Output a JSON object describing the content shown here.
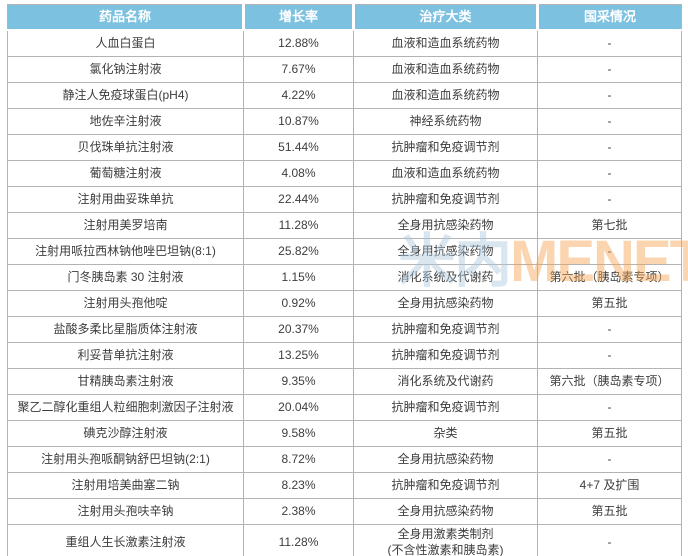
{
  "watermark": {
    "text_cn": "米内",
    "text_en": "MENET"
  },
  "colors": {
    "header_bg": "#7DC1E0",
    "header_text": "#FFFFFF",
    "grid_border": "#B3B3B3",
    "cell_text": "#3D3D3D",
    "watermark_cn": "#AEC9DD",
    "watermark_en": "#F5A34F"
  },
  "chart_data": {
    "type": "table",
    "title": "",
    "columns": [
      "药品名称",
      "增长率",
      "治疗大类",
      "国采情况"
    ],
    "rows": [
      {
        "name": "人血白蛋白",
        "growth": "12.88%",
        "category": "血液和造血系统药物",
        "procurement": "-"
      },
      {
        "name": "氯化钠注射液",
        "growth": "7.67%",
        "category": "血液和造血系统药物",
        "procurement": "-"
      },
      {
        "name": "静注人免疫球蛋白(pH4)",
        "growth": "4.22%",
        "category": "血液和造血系统药物",
        "procurement": "-"
      },
      {
        "name": "地佐辛注射液",
        "growth": "10.87%",
        "category": "神经系统药物",
        "procurement": "-"
      },
      {
        "name": "贝伐珠单抗注射液",
        "growth": "51.44%",
        "category": "抗肿瘤和免疫调节剂",
        "procurement": "-"
      },
      {
        "name": "葡萄糖注射液",
        "growth": "4.08%",
        "category": "血液和造血系统药物",
        "procurement": "-"
      },
      {
        "name": "注射用曲妥珠单抗",
        "growth": "22.44%",
        "category": "抗肿瘤和免疫调节剂",
        "procurement": "-"
      },
      {
        "name": "注射用美罗培南",
        "growth": "11.28%",
        "category": "全身用抗感染药物",
        "procurement": "第七批"
      },
      {
        "name": "注射用哌拉西林钠他唑巴坦钠(8:1)",
        "growth": "25.82%",
        "category": "全身用抗感染药物",
        "procurement": "-"
      },
      {
        "name": "门冬胰岛素 30 注射液",
        "growth": "1.15%",
        "category": "消化系统及代谢药",
        "procurement": "第六批（胰岛素专项）"
      },
      {
        "name": "注射用头孢他啶",
        "growth": "0.92%",
        "category": "全身用抗感染药物",
        "procurement": "第五批"
      },
      {
        "name": "盐酸多柔比星脂质体注射液",
        "growth": "20.37%",
        "category": "抗肿瘤和免疫调节剂",
        "procurement": "-"
      },
      {
        "name": "利妥昔单抗注射液",
        "growth": "13.25%",
        "category": "抗肿瘤和免疫调节剂",
        "procurement": "-"
      },
      {
        "name": "甘精胰岛素注射液",
        "growth": "9.35%",
        "category": "消化系统及代谢药",
        "procurement": "第六批（胰岛素专项）"
      },
      {
        "name": "聚乙二醇化重组人粒细胞刺激因子注射液",
        "growth": "20.04%",
        "category": "抗肿瘤和免疫调节剂",
        "procurement": "-"
      },
      {
        "name": "碘克沙醇注射液",
        "growth": "9.58%",
        "category": "杂类",
        "procurement": "第五批"
      },
      {
        "name": "注射用头孢哌酮钠舒巴坦钠(2:1)",
        "growth": "8.72%",
        "category": "全身用抗感染药物",
        "procurement": "-"
      },
      {
        "name": "注射用培美曲塞二钠",
        "growth": "8.23%",
        "category": "抗肿瘤和免疫调节剂",
        "procurement": "4+7 及扩围"
      },
      {
        "name": "注射用头孢呋辛钠",
        "growth": "2.38%",
        "category": "全身用抗感染药物",
        "procurement": "第五批"
      },
      {
        "name": "重组人生长激素注射液",
        "growth": "11.28%",
        "category": "全身用激素类制剂\n(不含性激素和胰岛素)",
        "procurement": "-"
      }
    ]
  }
}
